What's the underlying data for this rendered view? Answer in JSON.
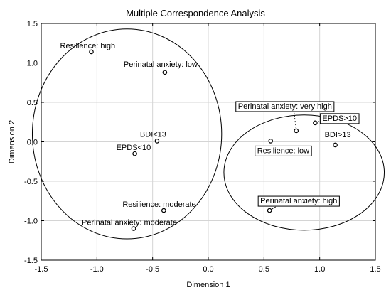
{
  "chart_data": {
    "type": "scatter",
    "title": "Multiple Correspondence Analysis",
    "xlabel": "Dimension 1",
    "ylabel": "Dimension 2",
    "xlim": [
      -1.5,
      1.5
    ],
    "ylim": [
      -1.5,
      1.5
    ],
    "x_ticks": [
      "-1.5",
      "-1.0",
      "-0.5",
      "0.0",
      "0.5",
      "1.0",
      "1.5"
    ],
    "y_ticks": [
      "1.5",
      "1.0",
      "0.5",
      "0.0",
      "-0.5",
      "-1.0",
      "-1.5"
    ],
    "grid": true,
    "legend": "none",
    "points": [
      {
        "label": "Resilience: high",
        "x": -1.05,
        "y": 1.14
      },
      {
        "label": "Perinatal anxiety: low",
        "x": -0.39,
        "y": 0.88
      },
      {
        "label": "BDI<13",
        "x": -0.46,
        "y": 0.01
      },
      {
        "label": "EPDS<10",
        "x": -0.66,
        "y": -0.15
      },
      {
        "label": "Resilience: moderate",
        "x": -0.4,
        "y": -0.87
      },
      {
        "label": "Perinatal anxiety: moderate",
        "x": -0.67,
        "y": -1.1
      },
      {
        "label": "Perinatal anxiety: very high",
        "x": 0.79,
        "y": 0.14
      },
      {
        "label": "EPDS>10",
        "x": 0.96,
        "y": 0.24
      },
      {
        "label": "BDI>13",
        "x": 1.14,
        "y": -0.04
      },
      {
        "label": "Resilience: low",
        "x": 0.56,
        "y": 0.01
      },
      {
        "label": "Perinatal anxiety: high",
        "x": 0.55,
        "y": -0.87
      }
    ],
    "clusters": [
      {
        "cx": -0.73,
        "cy": 0.1,
        "rx": 0.85,
        "ry": 1.33
      },
      {
        "cx": 0.86,
        "cy": -0.39,
        "rx": 0.72,
        "ry": 0.73
      }
    ]
  }
}
